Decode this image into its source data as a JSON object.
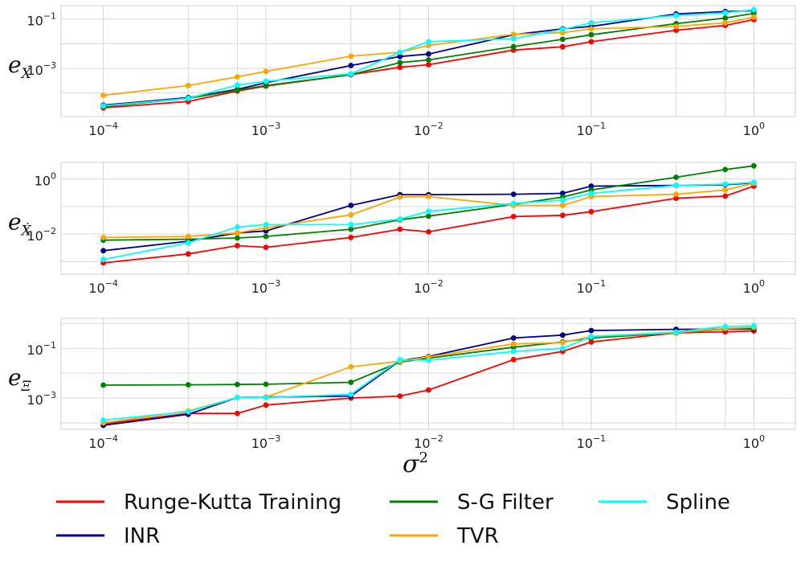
{
  "chart_data": {
    "type": "line",
    "x": [
      0.0001,
      0.000333,
      0.000667,
      0.001,
      0.00333,
      0.00667,
      0.01,
      0.0333,
      0.0667,
      0.1,
      0.333,
      0.667,
      1.0
    ],
    "xscale": "log",
    "xlim": [
      5.5e-05,
      1.8
    ],
    "x_ticks": [
      {
        "value": 0.0001,
        "base": "10",
        "exp": "−4"
      },
      {
        "value": 0.001,
        "base": "10",
        "exp": "−3"
      },
      {
        "value": 0.01,
        "base": "10",
        "exp": "−2"
      },
      {
        "value": 0.1,
        "base": "10",
        "exp": "−1"
      },
      {
        "value": 1,
        "base": "10",
        "exp": "0"
      }
    ],
    "xlabel": {
      "base": "σ",
      "sup": "2"
    },
    "grid": true,
    "legend_placement": "bottom",
    "legend": [
      {
        "name": "Runge-Kutta Training",
        "color": "#ff0000"
      },
      {
        "name": "INR",
        "color": "#00008b"
      },
      {
        "name": "S-G Filter",
        "color": "#008000"
      },
      {
        "name": "TVR",
        "color": "#ffa500"
      },
      {
        "name": "Spline",
        "color": "#00ffff"
      }
    ],
    "panels": [
      {
        "ylabel": {
          "base": "e",
          "sub": "X"
        },
        "yscale": "log",
        "ylim": [
          1.1e-05,
          0.35
        ],
        "y_ticks": [
          {
            "value": 0.1,
            "base": "10",
            "exp": "−1"
          },
          {
            "value": 0.001,
            "base": "10",
            "exp": "−3"
          }
        ],
        "series": [
          {
            "name": "Runge-Kutta Training",
            "color": "#ff0000",
            "values": [
              2.5e-05,
              4.5e-05,
              0.00012,
              0.00019,
              0.00055,
              0.0011,
              0.0014,
              0.0055,
              0.0075,
              0.012,
              0.035,
              0.055,
              0.095
            ]
          },
          {
            "name": "INR",
            "color": "#00008b",
            "values": [
              3.2e-05,
              6.5e-05,
              0.00014,
              0.00026,
              0.0013,
              0.003,
              0.0038,
              0.023,
              0.04,
              0.05,
              0.16,
              0.2,
              0.22
            ]
          },
          {
            "name": "S-G Filter",
            "color": "#008000",
            "values": [
              2.8e-05,
              6e-05,
              0.00013,
              0.0002,
              0.00055,
              0.0017,
              0.0022,
              0.0076,
              0.015,
              0.023,
              0.065,
              0.11,
              0.17
            ]
          },
          {
            "name": "TVR",
            "color": "#ffa500",
            "values": [
              8e-05,
              0.0002,
              0.00045,
              0.00075,
              0.0031,
              0.0045,
              0.0085,
              0.024,
              0.028,
              0.04,
              0.05,
              0.07,
              0.12
            ]
          },
          {
            "name": "Spline",
            "color": "#00ffff",
            "values": [
              3e-05,
              6e-05,
              0.00021,
              0.0003,
              0.0006,
              0.0045,
              0.012,
              0.016,
              0.038,
              0.07,
              0.14,
              0.18,
              0.24
            ]
          }
        ]
      },
      {
        "ylabel": {
          "base": "e",
          "sub": "Ẋ"
        },
        "yscale": "log",
        "ylim": [
          0.00035,
          4.0
        ],
        "y_ticks": [
          {
            "value": 1,
            "base": "10",
            "exp": "0"
          },
          {
            "value": 0.01,
            "base": "10",
            "exp": "−2"
          }
        ],
        "series": [
          {
            "name": "Runge-Kutta Training",
            "color": "#ff0000",
            "values": [
              0.0009,
              0.0019,
              0.0038,
              0.0033,
              0.0075,
              0.015,
              0.012,
              0.043,
              0.048,
              0.065,
              0.2,
              0.24,
              0.55
            ]
          },
          {
            "name": "INR",
            "color": "#00008b",
            "values": [
              0.0025,
              0.0055,
              0.011,
              0.013,
              0.11,
              0.27,
              0.27,
              0.28,
              0.3,
              0.55,
              0.58,
              0.62,
              0.72
            ]
          },
          {
            "name": "S-G Filter",
            "color": "#008000",
            "values": [
              0.006,
              0.0065,
              0.0072,
              0.0082,
              0.015,
              0.033,
              0.045,
              0.12,
              0.22,
              0.4,
              1.15,
              2.2,
              3.0
            ]
          },
          {
            "name": "TVR",
            "color": "#ffa500",
            "values": [
              0.0075,
              0.0082,
              0.011,
              0.017,
              0.05,
              0.22,
              0.23,
              0.11,
              0.11,
              0.23,
              0.28,
              0.4,
              0.7
            ]
          },
          {
            "name": "Spline",
            "color": "#00ffff",
            "values": [
              0.0012,
              0.0048,
              0.018,
              0.022,
              0.022,
              0.035,
              0.067,
              0.13,
              0.17,
              0.3,
              0.58,
              0.65,
              0.75
            ]
          }
        ]
      },
      {
        "ylabel": {
          "base": "e",
          "sub": "Ξ"
        },
        "yscale": "log",
        "ylim": [
          5.5e-05,
          1.6
        ],
        "y_ticks": [
          {
            "value": 0.1,
            "base": "10",
            "exp": "−1"
          },
          {
            "value": 0.001,
            "base": "10",
            "exp": "−3"
          }
        ],
        "series": [
          {
            "name": "Runge-Kutta Training",
            "color": "#ff0000",
            "values": [
              9e-05,
              0.00024,
              0.00024,
              0.00052,
              0.001,
              0.0012,
              0.0021,
              0.035,
              0.075,
              0.18,
              0.42,
              0.46,
              0.5
            ]
          },
          {
            "name": "INR",
            "color": "#00008b",
            "values": [
              8e-05,
              0.00022,
              0.00105,
              0.0011,
              0.0012,
              0.032,
              0.047,
              0.26,
              0.34,
              0.52,
              0.58,
              0.59,
              0.6
            ]
          },
          {
            "name": "S-G Filter",
            "color": "#008000",
            "values": [
              0.0033,
              0.0034,
              0.0035,
              0.0036,
              0.0043,
              0.028,
              0.04,
              0.11,
              0.18,
              0.26,
              0.42,
              0.6,
              0.65
            ]
          },
          {
            "name": "TVR",
            "color": "#ffa500",
            "values": [
              0.0001,
              0.0003,
              0.00105,
              0.0011,
              0.018,
              0.03,
              0.045,
              0.15,
              0.17,
              0.3,
              0.43,
              0.63,
              0.7
            ]
          },
          {
            "name": "Spline",
            "color": "#00ffff",
            "values": [
              0.00013,
              0.00028,
              0.00105,
              0.00105,
              0.0014,
              0.035,
              0.033,
              0.075,
              0.1,
              0.3,
              0.45,
              0.76,
              0.8
            ]
          }
        ]
      }
    ]
  }
}
